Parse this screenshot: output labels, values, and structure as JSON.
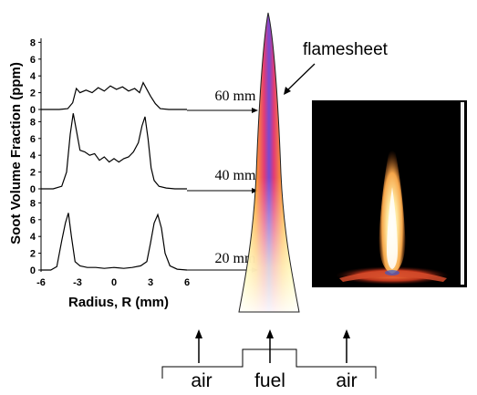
{
  "figure": {
    "ylabel": "Soot Volume Fraction (ppm)",
    "xlabel": "Radius, R (mm)",
    "flamesheet_label": "flamesheet",
    "inlets": {
      "left": "air",
      "center": "fuel",
      "right": "air"
    },
    "colors": {
      "curve": "#000000",
      "flame_outline": "#222222",
      "photo_bg": "#000000"
    }
  },
  "chart_data": {
    "type": "line",
    "x_axis": {
      "label": "Radius, R (mm)",
      "range": [
        -6,
        6
      ],
      "ticks": [
        "-6",
        "-3",
        "0",
        "3",
        "6"
      ]
    },
    "y_axis_label": "Soot Volume Fraction (ppm)",
    "panels": [
      {
        "name": "60 mm",
        "ylim": [
          0,
          9
        ],
        "yticks": [
          "0",
          "2",
          "4",
          "6",
          "8"
        ],
        "x": [
          -6,
          -4.5,
          -3.8,
          -3.4,
          -3.1,
          -2.8,
          -2.3,
          -1.8,
          -1.3,
          -0.8,
          -0.3,
          0.2,
          0.7,
          1.2,
          1.7,
          2.1,
          2.4,
          2.7,
          3.0,
          3.4,
          3.8,
          4.5,
          6
        ],
        "values": [
          0,
          0,
          0.1,
          0.8,
          2.5,
          2.0,
          2.3,
          2.0,
          2.6,
          2.2,
          2.8,
          2.4,
          2.7,
          2.2,
          2.5,
          2.0,
          3.2,
          2.4,
          1.6,
          0.7,
          0.1,
          0,
          0
        ]
      },
      {
        "name": "40 mm",
        "ylim": [
          0,
          9
        ],
        "yticks": [
          "0",
          "2",
          "4",
          "6",
          "8"
        ],
        "x": [
          -6,
          -5.0,
          -4.3,
          -3.9,
          -3.6,
          -3.35,
          -3.1,
          -2.8,
          -2.4,
          -2.0,
          -1.6,
          -1.2,
          -0.8,
          -0.4,
          0,
          0.4,
          0.8,
          1.2,
          1.6,
          2.0,
          2.3,
          2.55,
          2.8,
          3.05,
          3.3,
          3.7,
          4.3,
          5.0,
          6
        ],
        "values": [
          0,
          0,
          0.3,
          2.0,
          6.5,
          9.0,
          7.0,
          4.6,
          4.4,
          4.0,
          4.2,
          3.4,
          3.8,
          3.2,
          3.6,
          3.2,
          3.6,
          3.8,
          4.4,
          5.5,
          7.5,
          8.6,
          6.0,
          2.5,
          1.0,
          0.3,
          0.1,
          0,
          0
        ]
      },
      {
        "name": "20 mm",
        "ylim": [
          0,
          9
        ],
        "yticks": [
          "0",
          "2",
          "4",
          "6",
          "8"
        ],
        "x": [
          -6,
          -5.2,
          -4.7,
          -4.3,
          -4.0,
          -3.75,
          -3.5,
          -3.2,
          -2.8,
          -2.2,
          -1.5,
          -0.8,
          0,
          0.8,
          1.5,
          2.2,
          2.7,
          3.0,
          3.3,
          3.6,
          3.9,
          4.2,
          4.6,
          5.2,
          6
        ],
        "values": [
          0,
          0,
          0.4,
          3.5,
          5.6,
          6.8,
          4.0,
          1.0,
          0.5,
          0.3,
          0.3,
          0.2,
          0.3,
          0.2,
          0.3,
          0.5,
          1.0,
          3.2,
          5.6,
          6.6,
          5.0,
          2.0,
          0.5,
          0.1,
          0
        ]
      }
    ]
  }
}
